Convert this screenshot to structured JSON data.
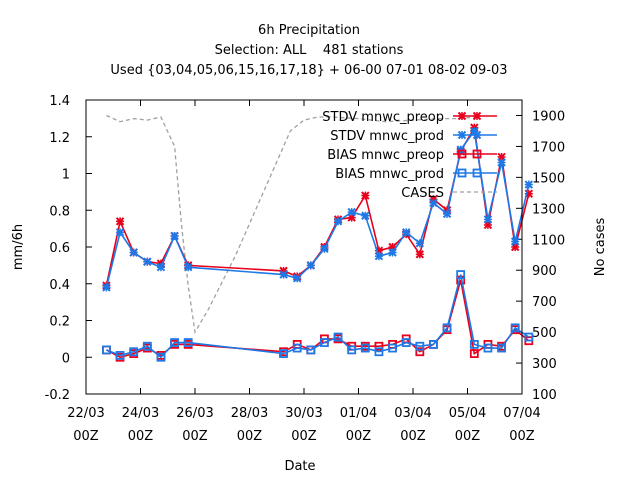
{
  "chart_data": {
    "type": "line",
    "title": "6h Precipitation",
    "subtitle": "Selection: ALL    481 stations",
    "subtitle2": "Used {03,04,05,06,15,16,17,18} + 06-00 07-01 08-02 09-03",
    "xlabel": "Date",
    "ylabel": "mm/6h",
    "y2label": "No cases",
    "ylim": [
      -0.2,
      1.4
    ],
    "y2lim": [
      100,
      2000
    ],
    "xlim": [
      0,
      32
    ],
    "grid": false,
    "legend_position": "top-right",
    "x_ticks": [
      {
        "x": 0,
        "line1": "22/03",
        "line2": "00Z"
      },
      {
        "x": 4,
        "line1": "24/03",
        "line2": "00Z"
      },
      {
        "x": 8,
        "line1": "26/03",
        "line2": "00Z"
      },
      {
        "x": 12,
        "line1": "28/03",
        "line2": "00Z"
      },
      {
        "x": 16,
        "line1": "30/03",
        "line2": "00Z"
      },
      {
        "x": 20,
        "line1": "01/04",
        "line2": "00Z"
      },
      {
        "x": 24,
        "line1": "03/04",
        "line2": "00Z"
      },
      {
        "x": 28,
        "line1": "05/04",
        "line2": "00Z"
      },
      {
        "x": 32,
        "line1": "07/04",
        "line2": "00Z"
      }
    ],
    "y_ticks": [
      "-0.2",
      "0",
      "0.2",
      "0.4",
      "0.6",
      "0.8",
      "1",
      "1.2",
      "1.4"
    ],
    "y_tick_values": [
      -0.2,
      0,
      0.2,
      0.4,
      0.6,
      0.8,
      1.0,
      1.2,
      1.4
    ],
    "y2_ticks": [
      "100",
      "300",
      "500",
      "700",
      "900",
      "1100",
      "1300",
      "1500",
      "1700",
      "1900"
    ],
    "y2_tick_values": [
      100,
      300,
      500,
      700,
      900,
      1100,
      1300,
      1500,
      1700,
      1900
    ],
    "x": [
      1.5,
      2.5,
      3.5,
      4.5,
      5.5,
      6.5,
      7.5,
      14.5,
      15.5,
      16.5,
      17.5,
      18.5,
      19.5,
      20.5,
      21.5,
      22.5,
      23.5,
      24.5,
      25.5,
      26.5,
      27.5,
      28.5,
      29.5,
      30.5,
      31.5,
      32.5
    ],
    "series": [
      {
        "name": "STDV mnwc_preop",
        "axis": "y",
        "color": "#e8001c",
        "marker": "x",
        "values": [
          0.39,
          0.74,
          0.57,
          0.52,
          0.51,
          0.66,
          0.5,
          0.47,
          0.44,
          0.5,
          0.6,
          0.75,
          0.76,
          0.88,
          0.58,
          0.6,
          0.67,
          0.56,
          0.86,
          0.8,
          1.12,
          1.25,
          0.72,
          1.09,
          0.6,
          0.89
        ]
      },
      {
        "name": "STDV mnwc_prod",
        "axis": "y",
        "color": "#1e78e6",
        "marker": "x",
        "values": [
          0.38,
          0.68,
          0.57,
          0.52,
          0.49,
          0.66,
          0.49,
          0.45,
          0.43,
          0.5,
          0.59,
          0.74,
          0.79,
          0.77,
          0.55,
          0.57,
          0.68,
          0.62,
          0.84,
          0.78,
          1.13,
          1.23,
          0.75,
          1.06,
          0.63,
          0.94
        ]
      },
      {
        "name": "BIAS mnwc_preop",
        "axis": "y",
        "color": "#e8001c",
        "marker": "square",
        "values": [
          0.04,
          0.0,
          0.02,
          0.05,
          0.01,
          0.07,
          0.07,
          0.03,
          0.07,
          0.04,
          0.1,
          0.1,
          0.06,
          0.06,
          0.06,
          0.07,
          0.1,
          0.03,
          0.07,
          0.15,
          0.42,
          0.02,
          0.07,
          0.06,
          0.15,
          0.09
        ]
      },
      {
        "name": "BIAS mnwc_prod",
        "axis": "y",
        "color": "#1e78e6",
        "marker": "square",
        "values": [
          0.04,
          0.01,
          0.03,
          0.06,
          0.0,
          0.08,
          0.08,
          0.02,
          0.05,
          0.04,
          0.08,
          0.11,
          0.04,
          0.05,
          0.03,
          0.05,
          0.08,
          0.06,
          0.07,
          0.16,
          0.45,
          0.07,
          0.05,
          0.05,
          0.16,
          0.11
        ]
      },
      {
        "name": "CASES",
        "axis": "y2",
        "color": "#a0a0a0",
        "dash": true,
        "x": [
          1.5,
          2.5,
          3.5,
          4.5,
          5.5,
          6.5,
          7.0,
          7.5,
          8.0,
          9.0,
          11.0,
          13.0,
          15.0,
          16.0,
          17.0,
          18.0,
          20.0,
          22.0,
          24.0,
          26.0,
          27.5,
          28.5
        ],
        "values": [
          1900,
          1860,
          1880,
          1870,
          1890,
          1700,
          1200,
          800,
          500,
          650,
          1000,
          1400,
          1800,
          1870,
          1890,
          1890,
          1880,
          1860,
          1870,
          1880,
          1880,
          1890
        ]
      }
    ]
  }
}
